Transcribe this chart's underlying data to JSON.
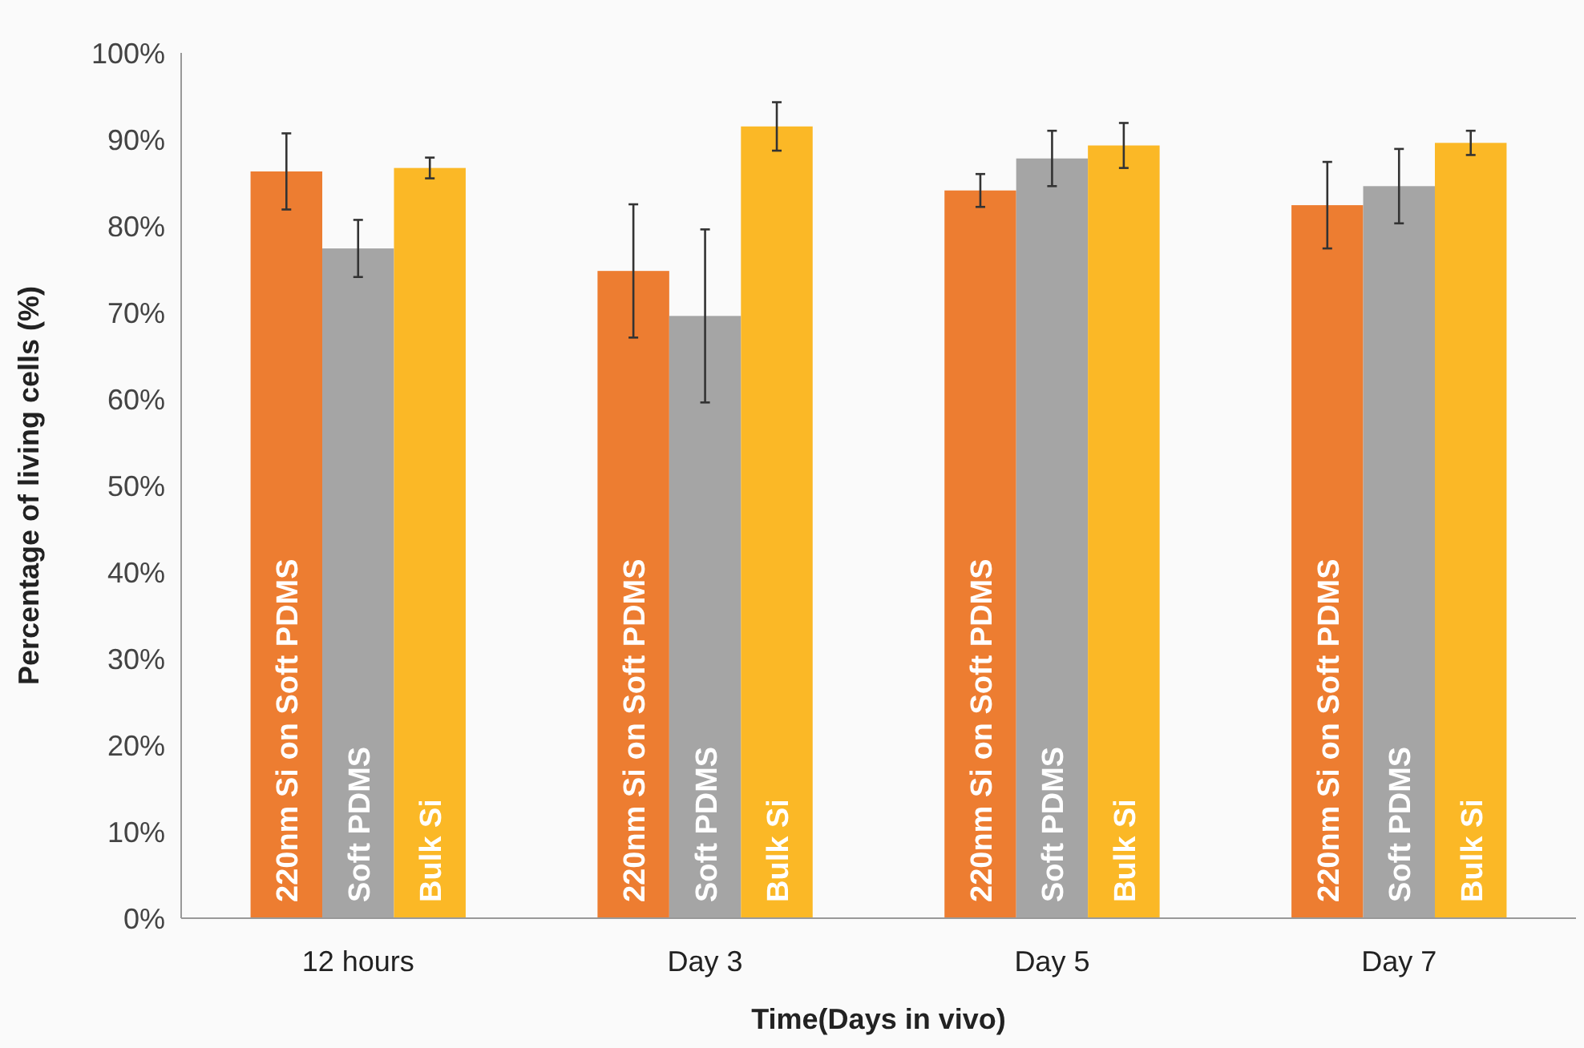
{
  "chart_data": {
    "type": "bar",
    "xlabel": "Time(Days in vivo)",
    "ylabel": "Percentage of living cells (%)",
    "categories": [
      "12 hours",
      "Day 3",
      "Day 5",
      "Day 7"
    ],
    "series": [
      {
        "name": "220nm Si on Soft PDMS",
        "color": "#ed7d31",
        "values": [
          86.3,
          74.8,
          84.1,
          82.4
        ],
        "errors": [
          4.4,
          7.7,
          1.9,
          5
        ]
      },
      {
        "name": "Soft PDMS",
        "color": "#a5a5a5",
        "values": [
          77.4,
          69.6,
          87.8,
          84.6
        ],
        "errors": [
          3.3,
          10,
          3.2,
          4.3
        ]
      },
      {
        "name": "Bulk Si",
        "color": "#fbb826",
        "values": [
          86.7,
          91.5,
          89.3,
          89.6
        ],
        "errors": [
          1.2,
          2.8,
          2.6,
          1.4
        ]
      }
    ],
    "ylim": [
      0,
      100
    ],
    "yticks": [
      {
        "value": 0,
        "label": "0%"
      },
      {
        "value": 10,
        "label": "10%"
      },
      {
        "value": 20,
        "label": "20%"
      },
      {
        "value": 30,
        "label": "30%"
      },
      {
        "value": 40,
        "label": "40%"
      },
      {
        "value": 50,
        "label": "50%"
      },
      {
        "value": 60,
        "label": "60%"
      },
      {
        "value": 70,
        "label": "70%"
      },
      {
        "value": 80,
        "label": "80%"
      },
      {
        "value": 90,
        "label": "90%"
      },
      {
        "value": 100,
        "label": "100%"
      }
    ],
    "grid": false
  }
}
